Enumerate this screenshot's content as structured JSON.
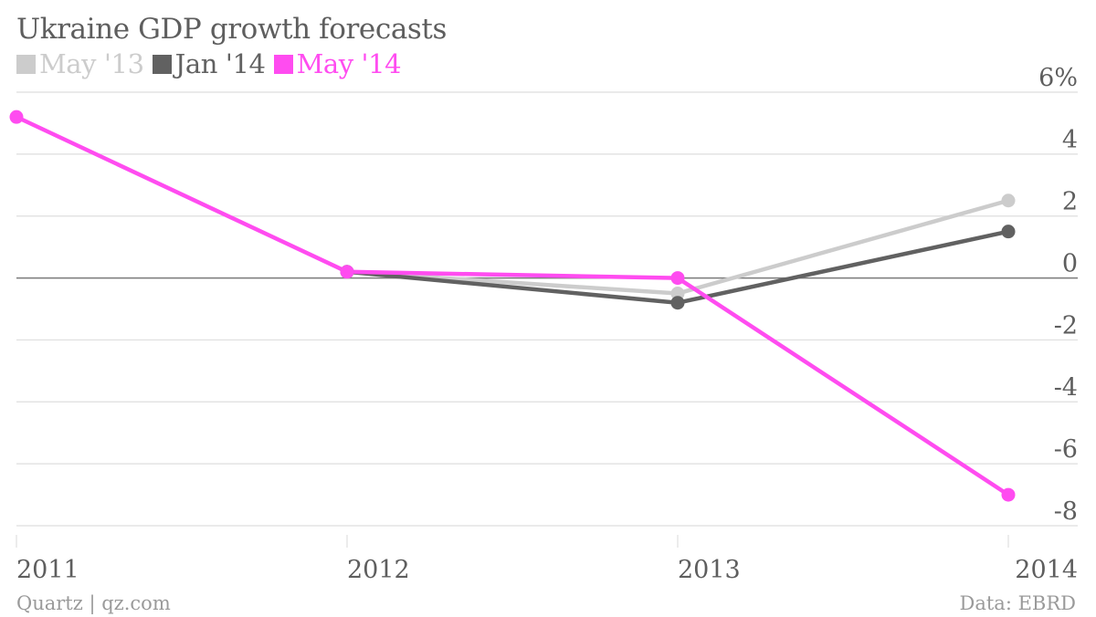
{
  "chart_data": {
    "type": "line",
    "title": "Ukraine GDP growth forecasts",
    "categories": [
      "2011",
      "2012",
      "2013",
      "2014"
    ],
    "y_ticks": [
      "6%",
      "4",
      "2",
      "0",
      "-2",
      "-4",
      "-6",
      "-8"
    ],
    "ylim": [
      -8,
      6
    ],
    "grid": true,
    "legend_position": "top-left",
    "series": [
      {
        "name": "May '13",
        "color": "#cccccc",
        "values": [
          null,
          0.2,
          -0.5,
          2.5
        ]
      },
      {
        "name": "Jan '14",
        "color": "#616161",
        "values": [
          null,
          0.2,
          -0.8,
          1.5
        ]
      },
      {
        "name": "May '14",
        "color": "#ff4cf0",
        "values": [
          5.2,
          0.2,
          0.0,
          -7.0
        ]
      }
    ]
  },
  "footer": {
    "source": "Quartz | qz.com",
    "data": "Data: EBRD"
  }
}
